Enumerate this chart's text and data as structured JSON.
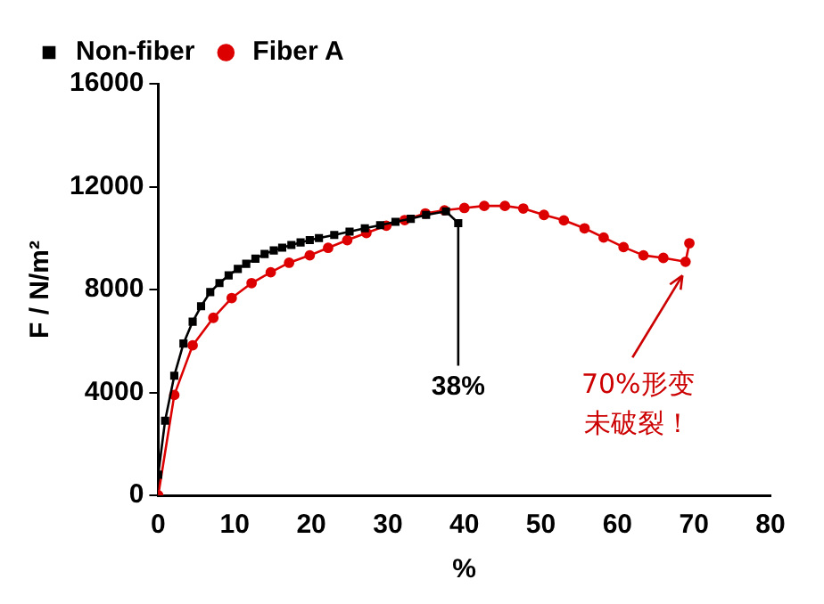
{
  "chart_data": {
    "type": "line",
    "xlabel": "%",
    "ylabel": "F / N/m²",
    "xlim": [
      0,
      80
    ],
    "xticks": [
      0,
      10,
      20,
      30,
      40,
      50,
      60,
      70,
      80
    ],
    "ylim": [
      0,
      16000
    ],
    "yticks": [
      0,
      4000,
      8000,
      12000,
      16000
    ],
    "grid": false,
    "legend": "top left",
    "series": [
      {
        "name": "Non-fiber",
        "color": "#000000",
        "marker": "square",
        "x": [
          0,
          0.9,
          2.1,
          3.3,
          4.5,
          5.6,
          6.8,
          8.0,
          9.2,
          10.4,
          11.5,
          12.7,
          13.9,
          15.1,
          16.2,
          17.4,
          18.6,
          19.8,
          21,
          23,
          25,
          27,
          29,
          31,
          33,
          35,
          37.6,
          39.2
        ],
        "values": [
          800,
          2900,
          4650,
          5900,
          6750,
          7350,
          7900,
          8250,
          8550,
          8800,
          9000,
          9200,
          9380,
          9520,
          9630,
          9730,
          9830,
          9920,
          10000,
          10120,
          10250,
          10380,
          10500,
          10630,
          10750,
          10900,
          11040,
          10580
        ]
      },
      {
        "name": "Fiber A",
        "color": "#dd0000",
        "marker": "circle",
        "x": [
          0,
          2.1,
          4.5,
          7.2,
          9.6,
          12.2,
          14.7,
          17.1,
          19.8,
          22.2,
          24.7,
          27.2,
          29.8,
          32.2,
          34.9,
          37.4,
          40,
          42.6,
          45.3,
          47.7,
          50.4,
          53,
          55.7,
          58.2,
          60.8,
          63.4,
          66,
          68.9,
          69.4
        ],
        "values": [
          0,
          3900,
          5830,
          6900,
          7670,
          8250,
          8670,
          9040,
          9330,
          9620,
          9920,
          10200,
          10480,
          10700,
          10960,
          11080,
          11170,
          11250,
          11250,
          11150,
          10900,
          10690,
          10380,
          10020,
          9650,
          9330,
          9230,
          9080,
          9800
        ]
      }
    ],
    "annotations": [
      {
        "text": "38%",
        "x": 39.2,
        "y": 10580
      },
      "70%形变未破裂！"
    ]
  }
}
